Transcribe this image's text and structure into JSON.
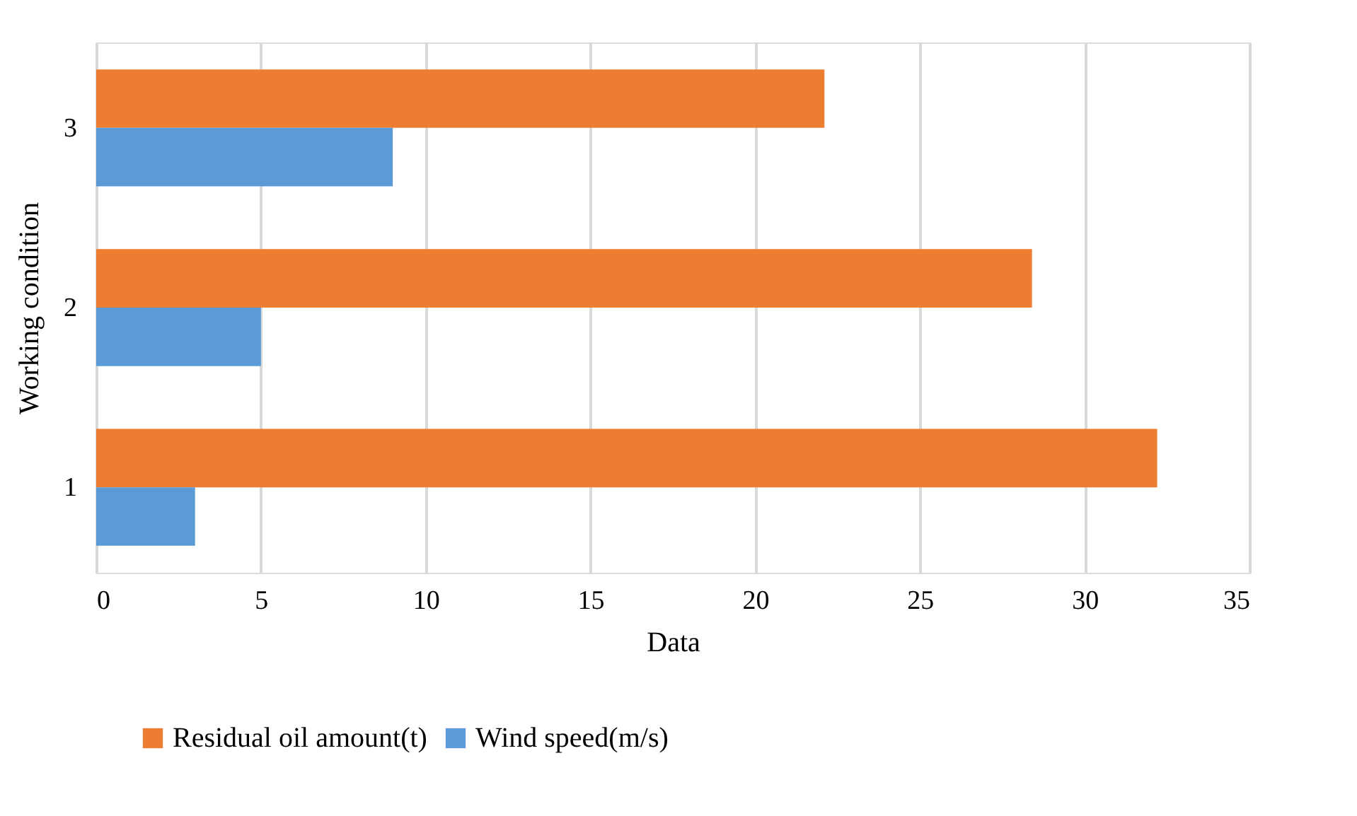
{
  "chart_data": {
    "type": "bar",
    "orientation": "horizontal",
    "xlabel": "Data",
    "ylabel": "Working condition",
    "categories": [
      "3",
      "2",
      "1"
    ],
    "series": [
      {
        "name": "Residual oil amount(t)",
        "color": "#ed7d31",
        "values": [
          22.1,
          28.4,
          32.2
        ]
      },
      {
        "name": "Wind speed(m/s)",
        "color": "#5b9bd5",
        "values": [
          9,
          5,
          3
        ]
      }
    ],
    "xlim": [
      0,
      35
    ],
    "xticks": [
      0,
      5,
      10,
      15,
      20,
      25,
      30,
      35
    ],
    "grid": "x",
    "legend": "bottom"
  }
}
